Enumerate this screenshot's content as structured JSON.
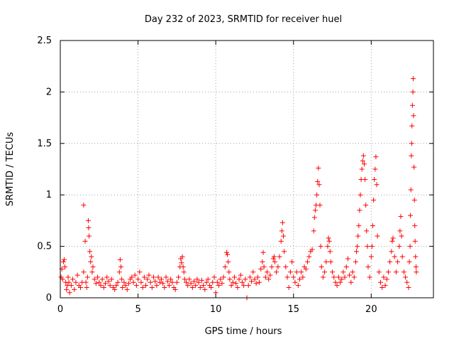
{
  "chart_data": {
    "type": "scatter",
    "title": "Day 232 of 2023, SRMTID for receiver huel",
    "xlabel": "GPS time / hours",
    "ylabel": "SRMTID / TECUs",
    "xlim": [
      0,
      24
    ],
    "ylim": [
      0,
      2.5
    ],
    "x_ticks": [
      0,
      5,
      10,
      15,
      20
    ],
    "x_tick_labels": [
      "0",
      "5",
      "10",
      "15",
      "20"
    ],
    "y_ticks": [
      0,
      0.5,
      1,
      1.5,
      2,
      2.5
    ],
    "y_tick_labels": [
      "0",
      "0.5",
      "1",
      "1.5",
      "2",
      "2.5"
    ],
    "grid": true,
    "marker": "+",
    "series": [
      {
        "name": "SRMTID",
        "color": "#ff0000",
        "points": [
          [
            0.05,
            0.2
          ],
          [
            0.1,
            0.28
          ],
          [
            0.15,
            0.18
          ],
          [
            0.2,
            0.35
          ],
          [
            0.25,
            0.37
          ],
          [
            0.3,
            0.3
          ],
          [
            0.35,
            0.15
          ],
          [
            0.4,
            0.08
          ],
          [
            0.45,
            0.12
          ],
          [
            0.5,
            0.2
          ],
          [
            0.55,
            0.15
          ],
          [
            0.6,
            0.05
          ],
          [
            0.7,
            0.12
          ],
          [
            0.8,
            0.18
          ],
          [
            0.9,
            0.08
          ],
          [
            1.0,
            0.15
          ],
          [
            1.1,
            0.22
          ],
          [
            1.2,
            0.12
          ],
          [
            1.3,
            0.1
          ],
          [
            1.4,
            0.15
          ],
          [
            1.5,
            0.25
          ],
          [
            1.5,
            0.9
          ],
          [
            1.6,
            0.55
          ],
          [
            1.65,
            0.15
          ],
          [
            1.7,
            0.1
          ],
          [
            1.75,
            0.2
          ],
          [
            1.8,
            0.75
          ],
          [
            1.82,
            0.68
          ],
          [
            1.85,
            0.6
          ],
          [
            1.9,
            0.45
          ],
          [
            1.95,
            0.35
          ],
          [
            2.0,
            0.4
          ],
          [
            2.05,
            0.25
          ],
          [
            2.1,
            0.3
          ],
          [
            2.2,
            0.18
          ],
          [
            2.3,
            0.14
          ],
          [
            2.4,
            0.2
          ],
          [
            2.5,
            0.15
          ],
          [
            2.6,
            0.12
          ],
          [
            2.7,
            0.18
          ],
          [
            2.8,
            0.1
          ],
          [
            2.9,
            0.14
          ],
          [
            3.0,
            0.2
          ],
          [
            3.1,
            0.16
          ],
          [
            3.2,
            0.12
          ],
          [
            3.3,
            0.18
          ],
          [
            3.4,
            0.1
          ],
          [
            3.5,
            0.08
          ],
          [
            3.6,
            0.12
          ],
          [
            3.7,
            0.15
          ],
          [
            3.8,
            0.25
          ],
          [
            3.85,
            0.37
          ],
          [
            3.9,
            0.3
          ],
          [
            3.95,
            0.18
          ],
          [
            4.0,
            0.1
          ],
          [
            4.1,
            0.15
          ],
          [
            4.2,
            0.12
          ],
          [
            4.3,
            0.08
          ],
          [
            4.4,
            0.14
          ],
          [
            4.5,
            0.18
          ],
          [
            4.6,
            0.2
          ],
          [
            4.7,
            0.15
          ],
          [
            4.8,
            0.22
          ],
          [
            4.9,
            0.12
          ],
          [
            5.0,
            0.18
          ],
          [
            5.1,
            0.25
          ],
          [
            5.2,
            0.15
          ],
          [
            5.3,
            0.1
          ],
          [
            5.4,
            0.2
          ],
          [
            5.5,
            0.12
          ],
          [
            5.6,
            0.18
          ],
          [
            5.7,
            0.22
          ],
          [
            5.8,
            0.15
          ],
          [
            5.9,
            0.1
          ],
          [
            6.0,
            0.2
          ],
          [
            6.1,
            0.16
          ],
          [
            6.2,
            0.12
          ],
          [
            6.3,
            0.2
          ],
          [
            6.4,
            0.15
          ],
          [
            6.5,
            0.18
          ],
          [
            6.6,
            0.14
          ],
          [
            6.7,
            0.1
          ],
          [
            6.8,
            0.2
          ],
          [
            6.9,
            0.16
          ],
          [
            7.0,
            0.12
          ],
          [
            7.1,
            0.18
          ],
          [
            7.2,
            0.15
          ],
          [
            7.3,
            0.1
          ],
          [
            7.4,
            0.08
          ],
          [
            7.5,
            0.15
          ],
          [
            7.6,
            0.2
          ],
          [
            7.7,
            0.3
          ],
          [
            7.75,
            0.38
          ],
          [
            7.8,
            0.34
          ],
          [
            7.85,
            0.4
          ],
          [
            7.9,
            0.3
          ],
          [
            7.95,
            0.25
          ],
          [
            8.0,
            0.18
          ],
          [
            8.1,
            0.15
          ],
          [
            8.2,
            0.12
          ],
          [
            8.3,
            0.18
          ],
          [
            8.4,
            0.14
          ],
          [
            8.5,
            0.1
          ],
          [
            8.6,
            0.16
          ],
          [
            8.7,
            0.12
          ],
          [
            8.8,
            0.18
          ],
          [
            8.9,
            0.15
          ],
          [
            9.0,
            0.1
          ],
          [
            9.1,
            0.17
          ],
          [
            9.2,
            0.12
          ],
          [
            9.3,
            0.08
          ],
          [
            9.4,
            0.15
          ],
          [
            9.5,
            0.18
          ],
          [
            9.6,
            0.12
          ],
          [
            9.7,
            0.1
          ],
          [
            9.8,
            0.15
          ],
          [
            9.9,
            0.2
          ],
          [
            10.0,
            0.05
          ],
          [
            10.1,
            0.15
          ],
          [
            10.2,
            0.12
          ],
          [
            10.3,
            0.18
          ],
          [
            10.4,
            0.14
          ],
          [
            10.5,
            0.2
          ],
          [
            10.6,
            0.3
          ],
          [
            10.7,
            0.44
          ],
          [
            10.75,
            0.42
          ],
          [
            10.8,
            0.35
          ],
          [
            10.85,
            0.25
          ],
          [
            10.9,
            0.18
          ],
          [
            11.0,
            0.12
          ],
          [
            11.1,
            0.15
          ],
          [
            11.2,
            0.2
          ],
          [
            11.3,
            0.14
          ],
          [
            11.4,
            0.1
          ],
          [
            11.5,
            0.18
          ],
          [
            11.6,
            0.22
          ],
          [
            11.7,
            0.15
          ],
          [
            11.8,
            0.12
          ],
          [
            11.9,
            0.18
          ],
          [
            12.0,
            0.0
          ],
          [
            12.1,
            0.12
          ],
          [
            12.2,
            0.2
          ],
          [
            12.3,
            0.16
          ],
          [
            12.4,
            0.25
          ],
          [
            12.5,
            0.18
          ],
          [
            12.6,
            0.14
          ],
          [
            12.7,
            0.2
          ],
          [
            12.8,
            0.15
          ],
          [
            12.9,
            0.28
          ],
          [
            13.0,
            0.35
          ],
          [
            13.05,
            0.44
          ],
          [
            13.1,
            0.3
          ],
          [
            13.2,
            0.2
          ],
          [
            13.3,
            0.25
          ],
          [
            13.4,
            0.18
          ],
          [
            13.5,
            0.22
          ],
          [
            13.6,
            0.3
          ],
          [
            13.7,
            0.38
          ],
          [
            13.75,
            0.4
          ],
          [
            13.8,
            0.35
          ],
          [
            13.9,
            0.25
          ],
          [
            14.0,
            0.3
          ],
          [
            14.1,
            0.4
          ],
          [
            14.2,
            0.55
          ],
          [
            14.25,
            0.65
          ],
          [
            14.3,
            0.73
          ],
          [
            14.35,
            0.6
          ],
          [
            14.4,
            0.45
          ],
          [
            14.5,
            0.3
          ],
          [
            14.6,
            0.2
          ],
          [
            14.7,
            0.1
          ],
          [
            14.8,
            0.25
          ],
          [
            14.9,
            0.35
          ],
          [
            15.0,
            0.2
          ],
          [
            15.1,
            0.15
          ],
          [
            15.2,
            0.25
          ],
          [
            15.3,
            0.12
          ],
          [
            15.4,
            0.18
          ],
          [
            15.5,
            0.25
          ],
          [
            15.6,
            0.2
          ],
          [
            15.7,
            0.3
          ],
          [
            15.8,
            0.28
          ],
          [
            15.9,
            0.35
          ],
          [
            16.0,
            0.4
          ],
          [
            16.1,
            0.45
          ],
          [
            16.2,
            0.47
          ],
          [
            16.3,
            0.65
          ],
          [
            16.35,
            0.78
          ],
          [
            16.4,
            0.85
          ],
          [
            16.45,
            0.9
          ],
          [
            16.5,
            1.0
          ],
          [
            16.55,
            1.13
          ],
          [
            16.6,
            1.26
          ],
          [
            16.65,
            1.1
          ],
          [
            16.7,
            0.9
          ],
          [
            16.75,
            0.5
          ],
          [
            16.8,
            0.3
          ],
          [
            16.9,
            0.2
          ],
          [
            17.0,
            0.25
          ],
          [
            17.1,
            0.35
          ],
          [
            17.2,
            0.5
          ],
          [
            17.25,
            0.58
          ],
          [
            17.3,
            0.55
          ],
          [
            17.35,
            0.45
          ],
          [
            17.4,
            0.35
          ],
          [
            17.5,
            0.25
          ],
          [
            17.6,
            0.2
          ],
          [
            17.7,
            0.15
          ],
          [
            17.8,
            0.12
          ],
          [
            17.9,
            0.2
          ],
          [
            18.0,
            0.15
          ],
          [
            18.1,
            0.18
          ],
          [
            18.2,
            0.25
          ],
          [
            18.3,
            0.2
          ],
          [
            18.4,
            0.3
          ],
          [
            18.5,
            0.38
          ],
          [
            18.6,
            0.22
          ],
          [
            18.7,
            0.15
          ],
          [
            18.8,
            0.25
          ],
          [
            18.9,
            0.2
          ],
          [
            19.0,
            0.35
          ],
          [
            19.05,
            0.45
          ],
          [
            19.1,
            0.5
          ],
          [
            19.15,
            0.6
          ],
          [
            19.2,
            0.7
          ],
          [
            19.25,
            0.85
          ],
          [
            19.3,
            1.0
          ],
          [
            19.35,
            1.15
          ],
          [
            19.4,
            1.25
          ],
          [
            19.45,
            1.33
          ],
          [
            19.5,
            1.38
          ],
          [
            19.55,
            1.3
          ],
          [
            19.6,
            1.15
          ],
          [
            19.65,
            0.9
          ],
          [
            19.7,
            0.65
          ],
          [
            19.75,
            0.5
          ],
          [
            19.8,
            0.3
          ],
          [
            19.9,
            0.2
          ],
          [
            20.0,
            0.4
          ],
          [
            20.05,
            0.5
          ],
          [
            20.1,
            0.7
          ],
          [
            20.15,
            0.95
          ],
          [
            20.2,
            1.15
          ],
          [
            20.25,
            1.25
          ],
          [
            20.3,
            1.37
          ],
          [
            20.35,
            1.1
          ],
          [
            20.4,
            0.6
          ],
          [
            20.5,
            0.25
          ],
          [
            20.6,
            0.15
          ],
          [
            20.7,
            0.1
          ],
          [
            20.8,
            0.2
          ],
          [
            20.9,
            0.12
          ],
          [
            21.0,
            0.18
          ],
          [
            21.1,
            0.25
          ],
          [
            21.2,
            0.35
          ],
          [
            21.3,
            0.45
          ],
          [
            21.35,
            0.55
          ],
          [
            21.4,
            0.58
          ],
          [
            21.5,
            0.4
          ],
          [
            21.6,
            0.25
          ],
          [
            21.7,
            0.35
          ],
          [
            21.8,
            0.5
          ],
          [
            21.85,
            0.65
          ],
          [
            21.9,
            0.79
          ],
          [
            21.95,
            0.6
          ],
          [
            22.0,
            0.4
          ],
          [
            22.1,
            0.25
          ],
          [
            22.2,
            0.2
          ],
          [
            22.3,
            0.15
          ],
          [
            22.4,
            0.1
          ],
          [
            22.45,
            0.35
          ],
          [
            22.5,
            0.5
          ],
          [
            22.52,
            0.8
          ],
          [
            22.55,
            1.05
          ],
          [
            22.58,
            1.38
          ],
          [
            22.6,
            1.5
          ],
          [
            22.62,
            1.67
          ],
          [
            22.65,
            1.87
          ],
          [
            22.68,
            2.0
          ],
          [
            22.7,
            2.13
          ],
          [
            22.72,
            1.77
          ],
          [
            22.75,
            1.27
          ],
          [
            22.78,
            0.95
          ],
          [
            22.8,
            0.7
          ],
          [
            22.82,
            0.55
          ],
          [
            22.85,
            0.4
          ],
          [
            22.88,
            0.3
          ],
          [
            22.9,
            0.25
          ]
        ]
      }
    ]
  }
}
